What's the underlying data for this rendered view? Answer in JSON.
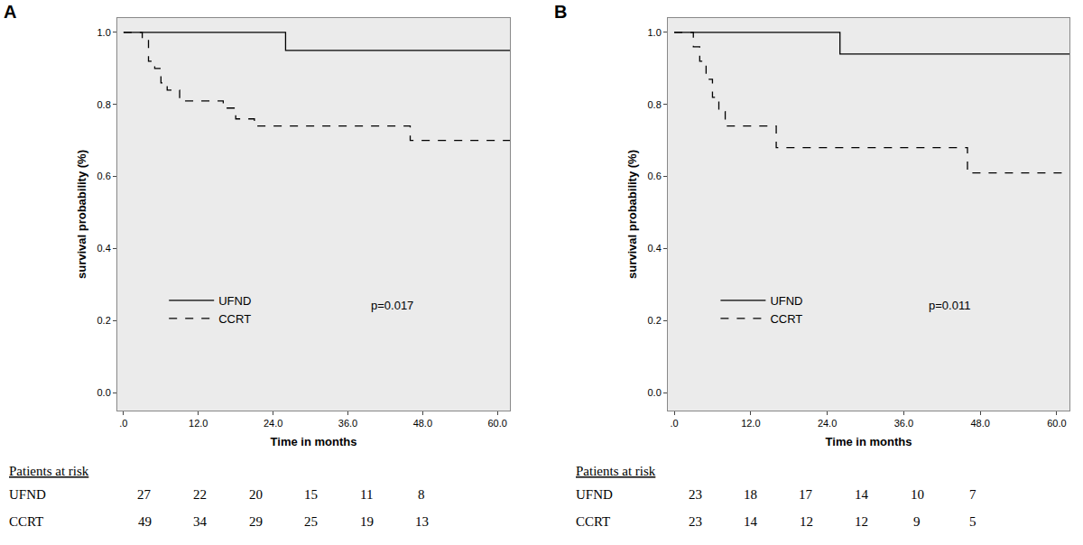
{
  "chart_data": [
    {
      "type": "line",
      "title": "A",
      "xlabel": "Time in months",
      "ylabel": "survival probability (%)",
      "xlim": [
        -1,
        62
      ],
      "xticks": [
        {
          "value": 0,
          "label": ".0"
        },
        {
          "value": 12,
          "label": "12.0"
        },
        {
          "value": 24,
          "label": "24.0"
        },
        {
          "value": 36,
          "label": "36.0"
        },
        {
          "value": 48,
          "label": "48.0"
        },
        {
          "value": 60,
          "label": "60.0"
        }
      ],
      "ylim": [
        -0.05,
        1.04
      ],
      "yticks": [
        {
          "value": 0,
          "label": "0.0"
        },
        {
          "value": 0.2,
          "label": "0.2"
        },
        {
          "value": 0.4,
          "label": "0.4"
        },
        {
          "value": 0.6,
          "label": "0.6"
        },
        {
          "value": 0.8,
          "label": "0.8"
        },
        {
          "value": 1,
          "label": "1.0"
        }
      ],
      "grid": false,
      "series": [
        {
          "name": "UFND",
          "color": "#000000",
          "line_style": "solid",
          "x": [
            0,
            26,
            62
          ],
          "values": [
            1,
            0.95,
            0.95
          ]
        },
        {
          "name": "CCRT",
          "color": "#000000",
          "line_style": "dashed",
          "x": [
            0,
            3,
            4,
            5,
            6,
            7,
            9,
            16,
            18,
            21,
            46,
            62
          ],
          "values": [
            1,
            0.98,
            0.92,
            0.9,
            0.86,
            0.84,
            0.81,
            0.79,
            0.76,
            0.74,
            0.7,
            0.7
          ]
        }
      ],
      "annotations": [
        "p=0.017"
      ],
      "risk_table": {
        "title": "Patients at risk",
        "rows": [
          {
            "name": "UFND",
            "values": [
              27,
              22,
              20,
              15,
              11,
              8
            ]
          },
          {
            "name": "CCRT",
            "values": [
              49,
              34,
              29,
              25,
              19,
              13
            ]
          }
        ]
      }
    },
    {
      "type": "line",
      "title": "B",
      "xlabel": "Time in months",
      "ylabel": "survival probability (%)",
      "xlim": [
        -1,
        62
      ],
      "xticks": [
        {
          "value": 0,
          "label": ".0"
        },
        {
          "value": 12,
          "label": "12.0"
        },
        {
          "value": 24,
          "label": "24.0"
        },
        {
          "value": 36,
          "label": "36.0"
        },
        {
          "value": 48,
          "label": "48.0"
        },
        {
          "value": 60,
          "label": "60.0"
        }
      ],
      "ylim": [
        -0.05,
        1.04
      ],
      "yticks": [
        {
          "value": 0,
          "label": "0.0"
        },
        {
          "value": 0.2,
          "label": "0.2"
        },
        {
          "value": 0.4,
          "label": "0.4"
        },
        {
          "value": 0.6,
          "label": "0.6"
        },
        {
          "value": 0.8,
          "label": "0.8"
        },
        {
          "value": 1,
          "label": "1.0"
        }
      ],
      "grid": false,
      "series": [
        {
          "name": "UFND",
          "color": "#000000",
          "line_style": "solid",
          "x": [
            0,
            26,
            62
          ],
          "values": [
            1,
            0.94,
            0.94
          ]
        },
        {
          "name": "CCRT",
          "color": "#000000",
          "line_style": "dashed",
          "x": [
            0,
            3,
            4,
            5,
            6,
            7,
            8,
            16,
            46,
            62
          ],
          "values": [
            1,
            0.96,
            0.92,
            0.87,
            0.82,
            0.78,
            0.74,
            0.68,
            0.61,
            0.61
          ]
        }
      ],
      "annotations": [
        "p=0.011"
      ],
      "risk_table": {
        "title": "Patients at risk",
        "rows": [
          {
            "name": "UFND",
            "values": [
              23,
              18,
              17,
              14,
              10,
              7
            ]
          },
          {
            "name": "CCRT",
            "values": [
              23,
              14,
              12,
              12,
              9,
              5
            ]
          }
        ]
      }
    }
  ]
}
